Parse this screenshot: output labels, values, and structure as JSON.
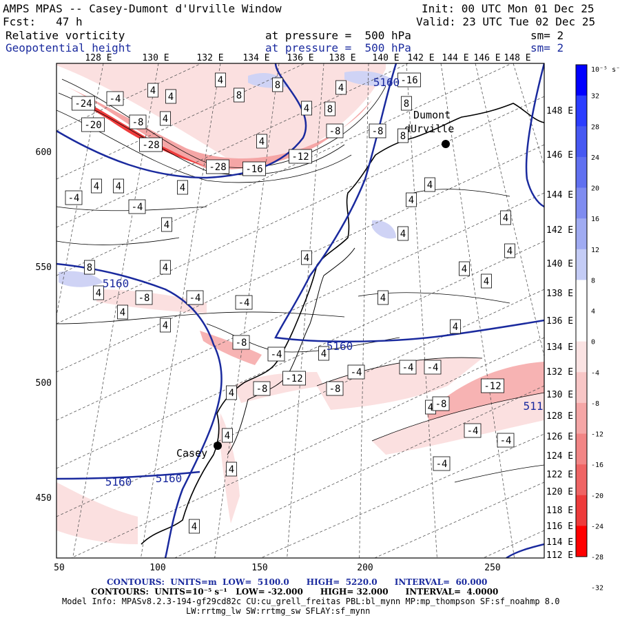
{
  "header": {
    "title": "AMPS MPAS -- Casey-Dumont d'Urville Window",
    "fcst": "Fcst:   47 h",
    "init": "Init: 00 UTC Mon 01 Dec 25",
    "valid": "Valid: 23 UTC Tue 02 Dec 25",
    "field1_name": "Relative vorticity",
    "field1_level": "at pressure =  500 hPa",
    "field1_sm": "sm= 2",
    "field2_name": "Geopotential height",
    "field2_level": "at pressure =  500 hPa",
    "field2_sm": "sm= 2"
  },
  "colors": {
    "contour_blue": "#1a2a9e",
    "pos_strong": "#0000ff",
    "neg_strong": "#ff0000",
    "neg_light": "#fbe3e3"
  },
  "top_lon_labels": [
    "128 E",
    "130 E",
    "132 E",
    "134 E",
    "136 E",
    "138 E",
    "140 E",
    "142 E",
    "144 E",
    "146 E",
    "148 E"
  ],
  "right_lon_labels": [
    "148 E",
    "146 E",
    "144 E",
    "142 E",
    "140 E",
    "138 E",
    "136 E",
    "134 E",
    "132 E",
    "130 E",
    "128 E",
    "126 E",
    "124 E",
    "122 E",
    "120 E",
    "118 E",
    "116 E",
    "114 E",
    "112 E"
  ],
  "x_axis": [
    "50",
    "100",
    "150",
    "200",
    "250"
  ],
  "y_axis": [
    "600",
    "550",
    "500",
    "450"
  ],
  "colorbar": {
    "unit": "10⁻⁵ s⁻¹",
    "labels": [
      "32",
      "28",
      "24",
      "20",
      "16",
      "12",
      "8",
      "4",
      "0",
      "-4",
      "-8",
      "-12",
      "-16",
      "-20",
      "-24",
      "-28",
      "-32"
    ]
  },
  "places": {
    "dumont": [
      "Dumont",
      "dUrville"
    ],
    "casey": "Casey"
  },
  "contour_labels": {
    "vort": [
      "4",
      "4",
      "4",
      "4",
      "4",
      "4",
      "4",
      "4",
      "4",
      "4",
      "4",
      "4",
      "4",
      "4",
      "4",
      "4",
      "4",
      "4",
      "4",
      "4",
      "4",
      "4",
      "4",
      "4",
      "4",
      "4",
      "4",
      "4",
      "4",
      "4",
      "4",
      "8",
      "8",
      "8",
      "8",
      "8",
      "8",
      "-4",
      "-4",
      "-4",
      "-4",
      "-4",
      "-4",
      "-4",
      "-4",
      "-4",
      "-4",
      "-4",
      "-4",
      "-8",
      "-8",
      "-8",
      "-8",
      "-8",
      "-8",
      "-8",
      "-8",
      "-12",
      "-12",
      "-12",
      "-16",
      "-16",
      "-20",
      "-24",
      "-28",
      "-28"
    ],
    "height": [
      "5160",
      "5160",
      "5160",
      "5160",
      "5160",
      "511"
    ]
  },
  "footer": {
    "line1": "CONTOURS:  UNITS=m  LOW=  5100.0      HIGH=  5220.0      INTERVAL=  60.000",
    "line2": "CONTOURS:  UNITS=10⁻⁵ s⁻¹   LOW= -32.000      HIGH= 32.000      INTERVAL=  4.0000",
    "line3": "Model Info: MPASv8.2.3-194-gf29cd82c CU:cu_grell_freitas PBL:bl_mynn MP:mp_thompson SF:sf_noahmp 8.0",
    "line4": "LW:rrtmg_lw SW:rrtmg_sw SFLAY:sf_mynn"
  }
}
